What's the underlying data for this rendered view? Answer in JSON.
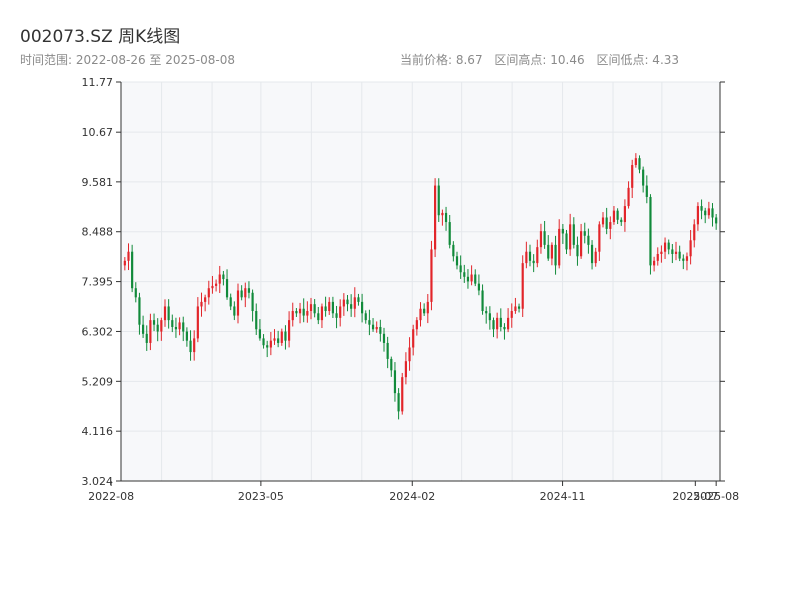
{
  "header": {
    "title": "002073.SZ 周K线图",
    "range_label": "时间范围: 2022-08-26 至 2025-08-08",
    "current_price": "当前价格: 8.67",
    "range_high": "区间高点: 10.46",
    "range_low": "区间低点: 4.33"
  },
  "colors": {
    "up": "#e2252a",
    "down": "#118a3a",
    "plot_bg": "#f7f8fa",
    "grid": "#e5e8ec",
    "axis": "#333333"
  },
  "chart_data": {
    "type": "candlestick",
    "title": "002073.SZ 周K线图",
    "xlabel": "",
    "ylabel": "",
    "ylim": [
      3.024,
      11.77
    ],
    "xlim": [
      "2022-08-19",
      "2025-08-15"
    ],
    "grid": true,
    "y_ticks": [
      "3.024",
      "4.116",
      "5.209",
      "6.302",
      "7.395",
      "8.488",
      "9.581",
      "10.67",
      "11.77"
    ],
    "x_ticks": [
      {
        "date": "2022-08-01",
        "label": "2022-08"
      },
      {
        "date": "2023-05-01",
        "label": "2023-05"
      },
      {
        "date": "2024-02-01",
        "label": "2024-02"
      },
      {
        "date": "2024-11-01",
        "label": "2024-11"
      },
      {
        "date": "2025-07-01",
        "label": "2025-07"
      },
      {
        "date": "2025-08-08",
        "label": "2025-08"
      }
    ],
    "start_date": "2022-08-26",
    "end_date": "2025-08-08",
    "close": [
      7.85,
      8.05,
      7.25,
      7.05,
      6.45,
      6.25,
      6.05,
      6.55,
      6.45,
      6.3,
      6.55,
      6.85,
      6.55,
      6.4,
      6.35,
      6.5,
      6.3,
      6.1,
      5.85,
      6.15,
      6.85,
      6.95,
      7.05,
      7.25,
      7.3,
      7.35,
      7.55,
      7.45,
      7.05,
      6.85,
      6.65,
      7.2,
      7.05,
      7.25,
      7.15,
      6.75,
      6.35,
      6.15,
      6.0,
      5.95,
      6.1,
      6.15,
      6.05,
      6.3,
      6.1,
      6.55,
      6.75,
      6.7,
      6.8,
      6.65,
      6.75,
      6.9,
      6.7,
      6.55,
      6.85,
      6.75,
      6.95,
      6.7,
      6.6,
      6.85,
      7.0,
      6.9,
      6.8,
      7.05,
      6.95,
      6.7,
      6.55,
      6.45,
      6.35,
      6.4,
      6.25,
      6.05,
      5.7,
      5.45,
      4.95,
      4.55,
      5.3,
      5.65,
      5.95,
      6.35,
      6.55,
      6.8,
      6.7,
      6.95,
      8.1,
      9.5,
      8.85,
      8.9,
      8.7,
      8.2,
      7.95,
      7.75,
      7.6,
      7.5,
      7.4,
      7.55,
      7.35,
      7.2,
      6.75,
      6.7,
      6.55,
      6.35,
      6.6,
      6.4,
      6.35,
      6.6,
      6.75,
      6.85,
      6.8,
      7.8,
      8.05,
      7.85,
      7.8,
      8.15,
      8.5,
      8.2,
      7.9,
      8.2,
      7.75,
      8.55,
      8.45,
      8.1,
      8.65,
      8.2,
      7.95,
      8.5,
      8.4,
      8.2,
      7.8,
      8.05,
      8.65,
      8.8,
      8.55,
      8.7,
      8.95,
      8.75,
      8.7,
      9.05,
      9.45,
      9.95,
      10.1,
      9.85,
      9.5,
      9.25,
      7.75,
      7.85,
      8.0,
      8.05,
      8.25,
      8.1,
      8.0,
      8.05,
      7.9,
      7.85,
      7.95,
      8.3,
      8.65,
      9.05,
      8.95,
      8.85,
      9.0,
      8.8,
      8.67
    ],
    "annotations": [
      "current 8.67",
      "high 10.46",
      "low 4.33"
    ]
  }
}
